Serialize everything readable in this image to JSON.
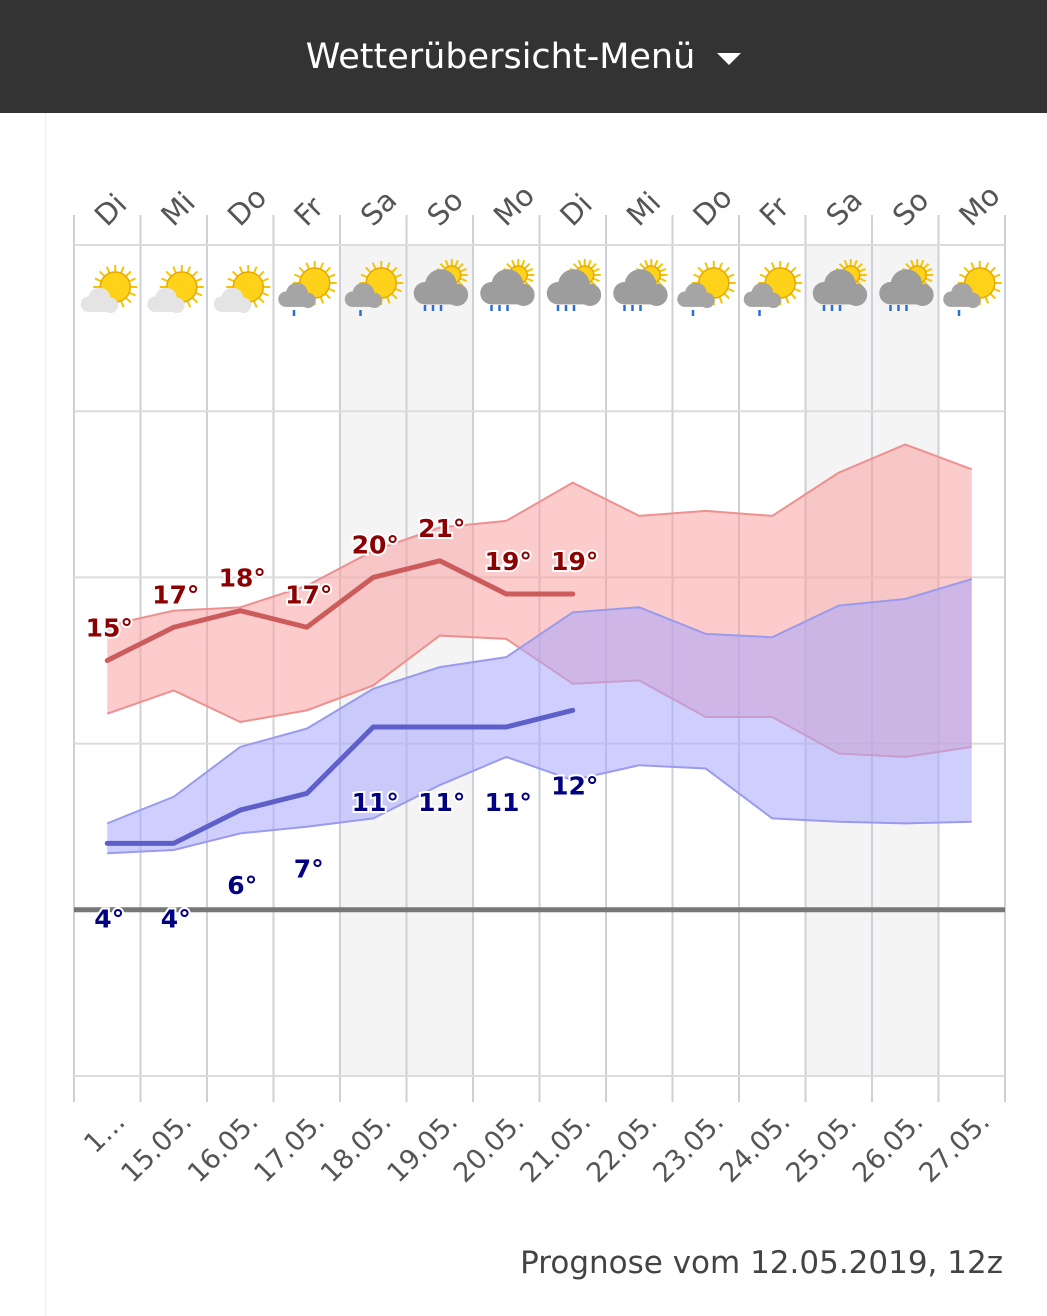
{
  "header": {
    "title": "Wetterübersicht-Menü"
  },
  "chart_data": {
    "type": "line",
    "days": [
      "Di",
      "Mi",
      "Do",
      "Fr",
      "Sa",
      "So",
      "Mo",
      "Di",
      "Mi",
      "Do",
      "Fr",
      "Sa",
      "So",
      "Mo"
    ],
    "categories": [
      "1…",
      "15.05.",
      "16.05.",
      "17.05.",
      "18.05.",
      "19.05.",
      "20.05.",
      "21.05.",
      "22.05.",
      "23.05.",
      "24.05.",
      "25.05.",
      "26.05.",
      "27.05."
    ],
    "ylim": [
      -10,
      40
    ],
    "yticks": [
      -10,
      0,
      10,
      20,
      30,
      40
    ],
    "grid": true,
    "series": [
      {
        "color": "#cc5c5c",
        "label_color": "#8b0000",
        "band_color": "#f9a0a0",
        "band_edge": "#ee9090",
        "values": [
          15,
          17,
          18,
          17,
          20,
          21,
          19,
          19,
          null,
          null,
          null,
          null,
          null,
          null
        ],
        "value_labels": [
          "15°",
          "17°",
          "18°",
          "17°",
          "20°",
          "21°",
          "19°",
          "19°",
          null,
          null,
          null,
          null,
          null,
          null
        ],
        "high": [
          17.1,
          18.0,
          18.2,
          19.5,
          21.6,
          23.0,
          23.4,
          25.7,
          23.7,
          24.0,
          23.7,
          26.3,
          28.0,
          26.5
        ],
        "low": [
          11.8,
          13.2,
          11.3,
          12.0,
          13.5,
          16.5,
          16.3,
          13.6,
          13.8,
          11.6,
          11.6,
          9.4,
          9.2,
          9.8
        ]
      },
      {
        "color": "#5f5fca",
        "label_color": "#000080",
        "band_color": "#a8a8ff",
        "band_edge": "#9a9aee",
        "values": [
          4,
          4,
          6,
          7,
          11,
          11,
          11,
          12,
          null,
          null,
          null,
          null,
          null,
          null
        ],
        "value_labels": [
          "4°",
          "4°",
          "6°",
          "7°",
          "11°",
          "11°",
          "11°",
          "12°",
          null,
          null,
          null,
          null,
          null,
          null
        ],
        "high": [
          5.2,
          6.8,
          9.8,
          10.9,
          13.3,
          14.6,
          15.2,
          17.9,
          18.2,
          16.6,
          16.4,
          18.3,
          18.7,
          19.9
        ],
        "low": [
          3.4,
          3.6,
          4.6,
          5.0,
          5.5,
          7.5,
          9.2,
          7.8,
          8.7,
          8.5,
          5.5,
          5.3,
          5.2,
          5.3
        ]
      }
    ]
  },
  "footer": {
    "text": "Prognose vom 12.05.2019, 12z"
  }
}
